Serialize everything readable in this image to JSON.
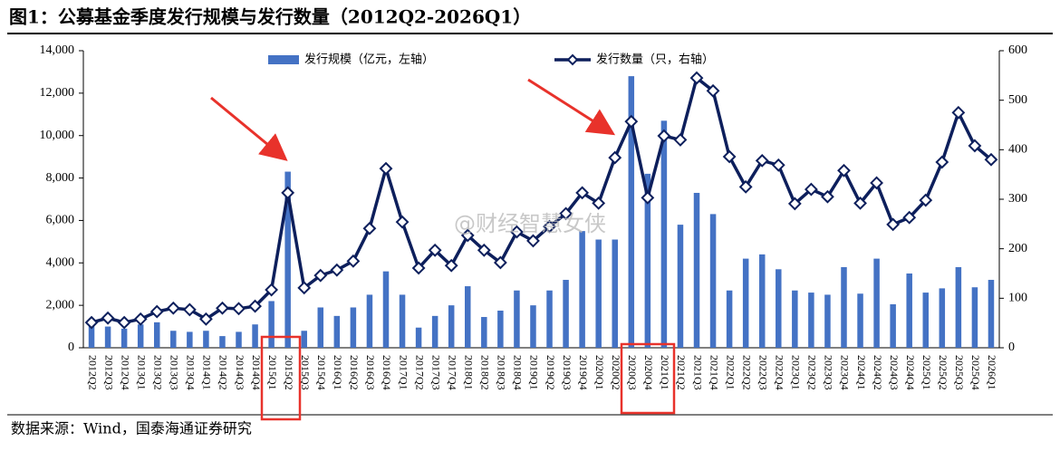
{
  "chart_data": {
    "type": "bar-line",
    "title": "图1：公募基金季度发行规模与发行数量（2012Q2-2026Q1）",
    "source": "数据来源：Wind，国泰海通证券研究",
    "watermark": "@财经智慧女侠",
    "categories": [
      "2012Q2",
      "2012Q3",
      "2012Q4",
      "2013Q1",
      "2013Q2",
      "2013Q3",
      "2013Q4",
      "2014Q1",
      "2014Q2",
      "2014Q3",
      "2014Q4",
      "2015Q1",
      "2015Q2",
      "2015Q3",
      "2015Q4",
      "2016Q1",
      "2016Q2",
      "2016Q3",
      "2016Q4",
      "2017Q1",
      "2017Q2",
      "2017Q3",
      "2017Q4",
      "2018Q1",
      "2018Q2",
      "2018Q3",
      "2018Q4",
      "2019Q1",
      "2019Q2",
      "2019Q3",
      "2019Q4",
      "2020Q1",
      "2020Q2",
      "2020Q3",
      "2020Q4",
      "2021Q1",
      "2021Q2",
      "2021Q3",
      "2021Q4",
      "2022Q1",
      "2022Q2",
      "2022Q3",
      "2022Q4",
      "2023Q1",
      "2023Q2",
      "2023Q3",
      "2023Q4",
      "2024Q1",
      "2024Q2",
      "2024Q3",
      "2024Q4",
      "2025Q1",
      "2025Q2",
      "2025Q3",
      "2025Q4",
      "2026Q1"
    ],
    "series": [
      {
        "name": "发行规模（亿元，左轴）",
        "type": "bar",
        "color": "#4472c4",
        "values": [
          1150,
          1000,
          900,
          1100,
          1200,
          800,
          750,
          800,
          550,
          750,
          1100,
          2200,
          8300,
          800,
          1900,
          1500,
          1900,
          2500,
          3600,
          2500,
          950,
          1500,
          2000,
          2900,
          1450,
          1750,
          2700,
          2000,
          2700,
          3200,
          5500,
          5100,
          5100,
          12800,
          8200,
          10700,
          5800,
          7300,
          6300,
          2700,
          4200,
          4400,
          3700,
          2700,
          2600,
          2500,
          3800,
          2550,
          4200,
          2050,
          3500,
          2600,
          2800,
          3800,
          2850,
          3200
        ]
      },
      {
        "name": "发行数量（只，右轴）",
        "type": "line",
        "axis": "y2",
        "color": "#0d1f5c",
        "values": [
          51,
          60,
          51,
          58,
          73,
          80,
          77,
          58,
          80,
          79,
          84,
          117,
          313,
          121,
          146,
          157,
          175,
          241,
          362,
          254,
          161,
          197,
          166,
          227,
          197,
          172,
          234,
          216,
          245,
          271,
          313,
          292,
          384,
          457,
          303,
          428,
          420,
          545,
          519,
          386,
          325,
          378,
          369,
          291,
          320,
          305,
          358,
          292,
          333,
          249,
          263,
          298,
          375,
          475,
          408,
          380
        ]
      }
    ],
    "ylim": [
      0,
      14000
    ],
    "yticks": [
      0,
      {
        "value": 2000,
        "label": "2,000"
      },
      {
        "value": 4000,
        "label": "4,000"
      },
      {
        "value": 6000,
        "label": "6,000"
      },
      {
        "value": 8000,
        "label": "8,000"
      },
      {
        "value": 10000,
        "label": "10,000"
      },
      {
        "value": 12000,
        "label": "12,000"
      },
      {
        "value": 14000,
        "label": "14,000"
      }
    ],
    "y2lim": [
      0,
      600
    ],
    "y2ticks": [
      0,
      100,
      200,
      300,
      400,
      500,
      600
    ],
    "grid": false
  }
}
